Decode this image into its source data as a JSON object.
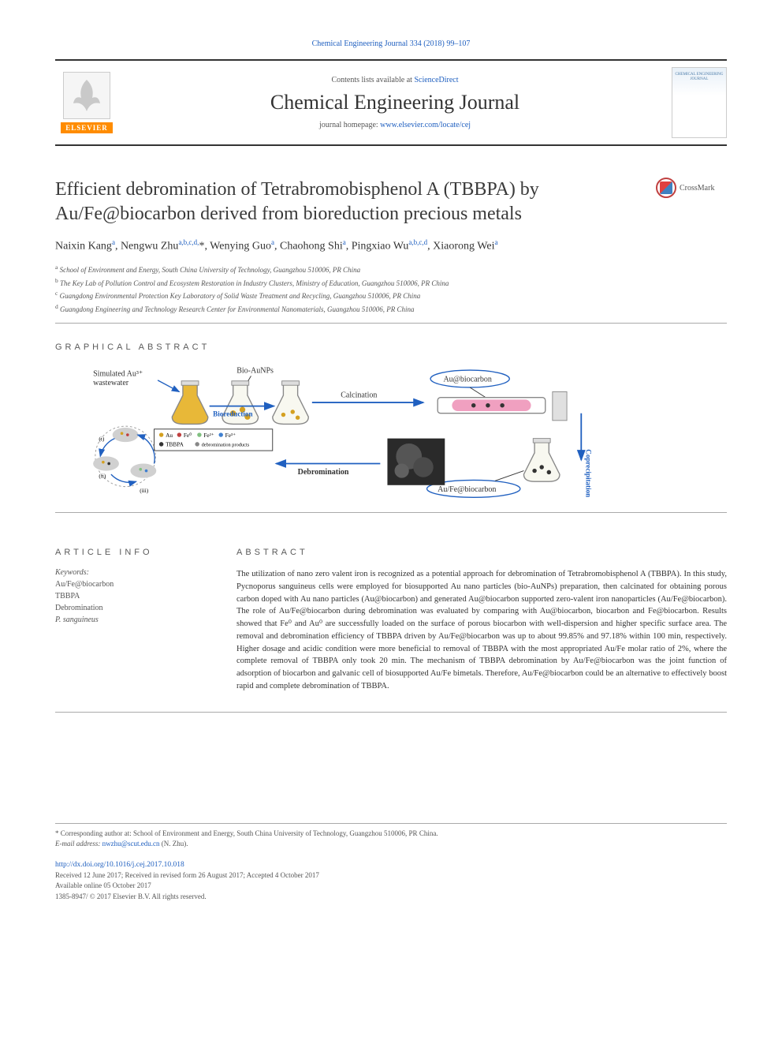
{
  "citation": "Chemical Engineering Journal 334 (2018) 99–107",
  "header": {
    "contents_prefix": "Contents lists available at ",
    "contents_link": "ScienceDirect",
    "journal_name": "Chemical Engineering Journal",
    "homepage_prefix": "journal homepage: ",
    "homepage_url": "www.elsevier.com/locate/cej",
    "publisher_logo": "ELSEVIER",
    "cover_label": "CHEMICAL ENGINEERING JOURNAL"
  },
  "crossmark_label": "CrossMark",
  "title": "Efficient debromination of Tetrabromobisphenol A (TBBPA) by Au/Fe@biocarbon derived from bioreduction precious metals",
  "authors_html": "Naixin Kang<sup>a</sup>, Nengwu Zhu<sup>a,b,c,d,</sup>*, Wenying Guo<sup>a</sup>, Chaohong Shi<sup>a</sup>, Pingxiao Wu<sup>a,b,c,d</sup>, Xiaorong Wei<sup>a</sup>",
  "affiliations": {
    "a": "School of Environment and Energy, South China University of Technology, Guangzhou 510006, PR China",
    "b": "The Key Lab of Pollution Control and Ecosystem Restoration in Industry Clusters, Ministry of Education, Guangzhou 510006, PR China",
    "c": "Guangdong Environmental Protection Key Laboratory of Solid Waste Treatment and Recycling, Guangzhou 510006, PR China",
    "d": "Guangdong Engineering and Technology Research Center for Environmental Nanomaterials, Guangzhou 510006, PR China"
  },
  "sections": {
    "graphical_abstract": "GRAPHICAL ABSTRACT",
    "article_info": "ARTICLE INFO",
    "abstract": "ABSTRACT"
  },
  "graphical": {
    "labels": {
      "sim_waste": "Simulated Au³⁺\nwastewater",
      "bio_aunps": "Bio-AuNPs",
      "bioreduction": "Bioreduction",
      "calcination": "Calcination",
      "au_biocarbon": "Au@biocarbon",
      "coprecipitation": "Coprecipitation",
      "aufe_biocarbon": "Au/Fe@biocarbon",
      "debromination": "Debromination"
    },
    "legend": {
      "au": "Au",
      "fe0": "Fe⁰",
      "fe2": "Fe²⁺",
      "fe3": "Fe³⁺",
      "tbbpa": "TBBPA",
      "products": "debromination products"
    },
    "colors": {
      "flask_yellow": "#e8b838",
      "flask_clear": "#f8f8f0",
      "arrow": "#2060c0",
      "dark_cluster": "#3a3a3a",
      "tube_pink": "#f0a0c0",
      "au_dot": "#d4a020",
      "fe_dot": "#c04040",
      "fe2_dot": "#80c080",
      "fe3_dot": "#4080d0"
    }
  },
  "keywords": {
    "label": "Keywords:",
    "items": [
      "Au/Fe@biocarbon",
      "TBBPA",
      "Debromination",
      "P. sanguineus"
    ]
  },
  "abstract": "The utilization of nano zero valent iron is recognized as a potential approach for debromination of Tetrabromobisphenol A (TBBPA). In this study, Pycnoporus sanguineus cells were employed for biosupported Au nano particles (bio-AuNPs) preparation, then calcinated for obtaining porous carbon doped with Au nano particles (Au@biocarbon) and generated Au@biocarbon supported zero-valent iron nanoparticles (Au/Fe@biocarbon). The role of Au/Fe@biocarbon during debromination was evaluated by comparing with Au@biocarbon, biocarbon and Fe@biocarbon. Results showed that Fe⁰ and Au⁰ are successfully loaded on the surface of porous biocarbon with well-dispersion and higher specific surface area. The removal and debromination efficiency of TBBPA driven by Au/Fe@biocarbon was up to about 99.85% and 97.18% within 100 min, respectively. Higher dosage and acidic condition were more beneficial to removal of TBBPA with the most appropriated Au/Fe molar ratio of 2%, where the complete removal of TBBPA only took 20 min. The mechanism of TBBPA debromination by Au/Fe@biocarbon was the joint function of adsorption of biocarbon and galvanic cell of biosupported Au/Fe bimetals. Therefore, Au/Fe@biocarbon could be an alternative to effectively boost rapid and complete debromination of TBBPA.",
  "footer": {
    "corresponding": "* Corresponding author at: School of Environment and Energy, South China University of Technology, Guangzhou 510006, PR China.",
    "email_label": "E-mail address: ",
    "email": "nwzhu@scut.edu.cn",
    "email_name": " (N. Zhu).",
    "doi": "http://dx.doi.org/10.1016/j.cej.2017.10.018",
    "received": "Received 12 June 2017; Received in revised form 26 August 2017; Accepted 4 October 2017",
    "available": "Available online 05 October 2017",
    "copyright": "1385-8947/ © 2017 Elsevier B.V. All rights reserved."
  }
}
